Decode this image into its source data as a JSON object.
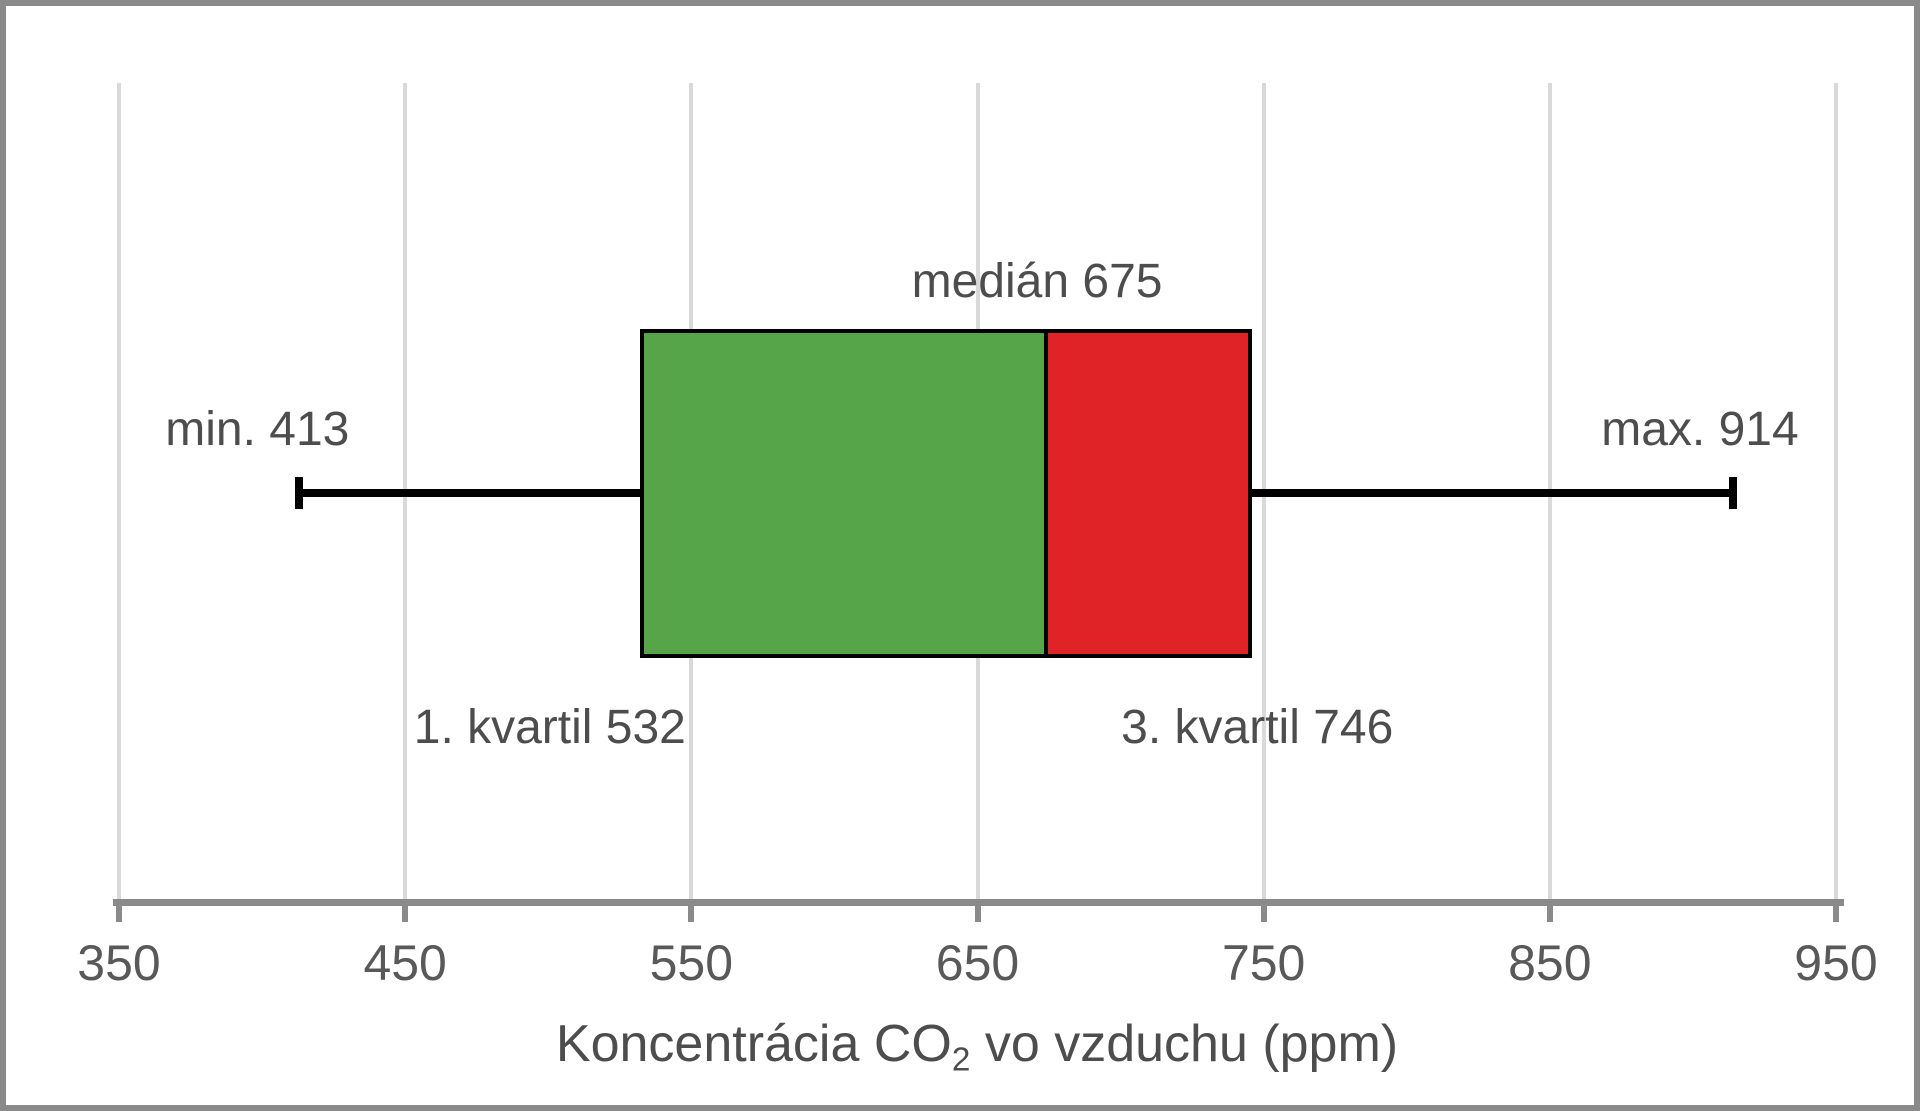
{
  "chart_data": {
    "type": "boxplot",
    "orientation": "horizontal",
    "values": {
      "min": 413,
      "q1": 532,
      "median": 675,
      "q3": 746,
      "max": 914
    },
    "xlim": [
      350,
      950
    ],
    "x_ticks": [
      350,
      450,
      550,
      650,
      750,
      850,
      950
    ],
    "xlabel": "Koncentrácia CO2 vo vzduchu (ppm)",
    "grid": true,
    "legend": false,
    "colors": {
      "box_lower": "#56A649",
      "box_upper": "#E02326",
      "box_border": "#000000",
      "whisker": "#000000",
      "gridline": "#D9D9D9",
      "axis_line": "#8a8a8a",
      "tick_label": "#595959",
      "annotation": "#4d4d4d"
    }
  },
  "annotations": {
    "median": "medián 675",
    "min": "min. 413",
    "max": "max. 914",
    "q1": "1. kvartil 532",
    "q3": "3. kvartil 746"
  },
  "axis_title": {
    "prefix": "Koncentrácia CO",
    "subscript": "2",
    "suffix": "vo vzduchu (ppm)"
  }
}
